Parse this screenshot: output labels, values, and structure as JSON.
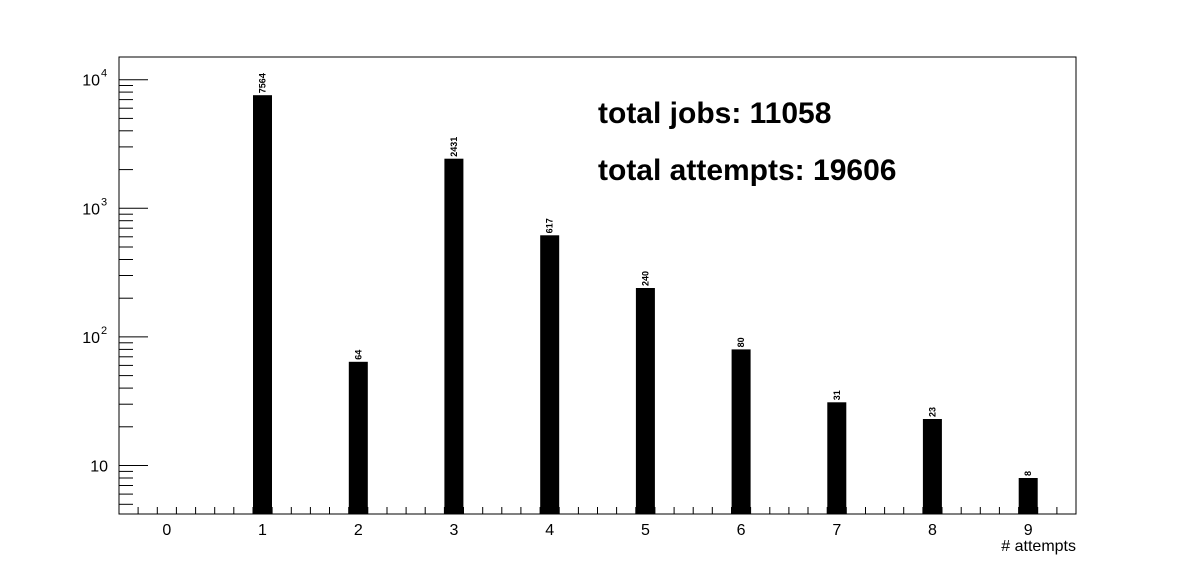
{
  "chart_data": {
    "type": "bar",
    "title": "",
    "xlabel": "# attempts",
    "ylabel": "",
    "categories": [
      "0",
      "1",
      "2",
      "3",
      "4",
      "5",
      "6",
      "7",
      "8",
      "9"
    ],
    "values": [
      null,
      7564,
      64,
      2431,
      617,
      240,
      80,
      31,
      23,
      8
    ],
    "data_labels": [
      "",
      "7564",
      "64",
      "2431",
      "617",
      "240",
      "80",
      "31",
      "23",
      "8"
    ],
    "xlim": [
      -0.5,
      9.5
    ],
    "ylim": [
      4.2,
      15000
    ],
    "y_scale": "log",
    "y_tick_labels": [
      "10",
      "10^2",
      "10^3",
      "10^4"
    ],
    "grid": false,
    "legend": "none",
    "annotations": [
      "total jobs: 11058",
      "total attempts: 19606"
    ],
    "bar_color": "#000000",
    "axis_color": "#000000"
  }
}
